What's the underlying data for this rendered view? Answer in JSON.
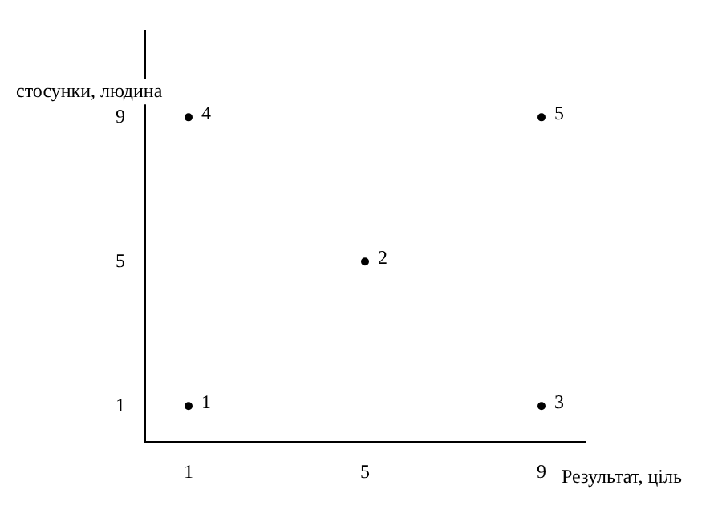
{
  "chart_data": {
    "type": "scatter",
    "xlabel": "Результат, ціль",
    "ylabel": "стосунки, людина",
    "x": [
      1,
      5,
      9,
      1,
      9
    ],
    "values": [
      1,
      5,
      1,
      9,
      9
    ],
    "color": "#000000",
    "marker": "circle",
    "xlim": [
      0,
      10
    ],
    "ylim": [
      0,
      11.4
    ],
    "xticks": [
      1,
      5,
      9
    ],
    "yticks": [
      1,
      5,
      9
    ],
    "grid": false,
    "legend": false,
    "annotations": [
      {
        "text": "1",
        "x": 1,
        "y": 1
      },
      {
        "text": "2",
        "x": 5,
        "y": 5
      },
      {
        "text": "3",
        "x": 9,
        "y": 1
      },
      {
        "text": "4",
        "x": 1,
        "y": 9
      },
      {
        "text": "5",
        "x": 9,
        "y": 9
      }
    ]
  }
}
